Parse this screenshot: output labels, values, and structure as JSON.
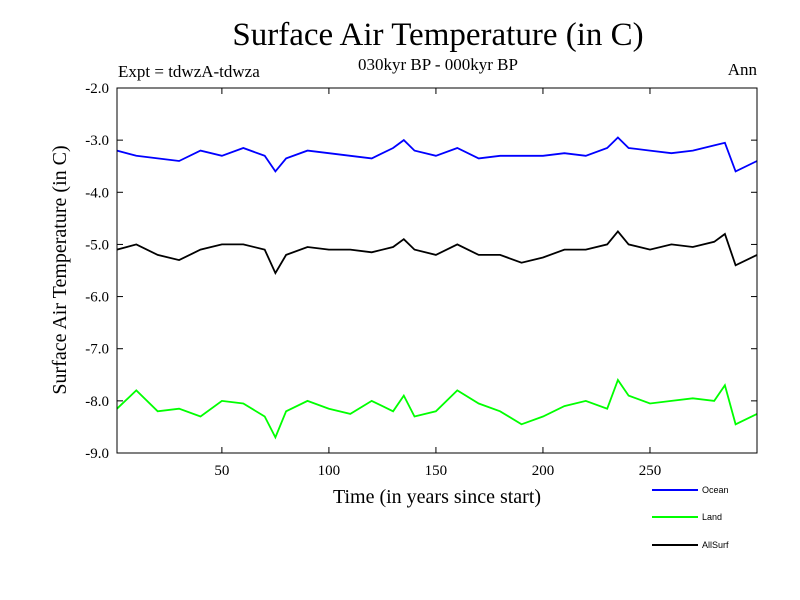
{
  "chart_data": {
    "type": "line",
    "title": "Surface Air Temperature (in C)",
    "subtitle": "030kyr BP - 000kyr BP",
    "experiment": "Expt = tdwzA-tdwza",
    "period": "Ann",
    "xlabel": "Time (in years since start)",
    "ylabel": "Surface Air Temperature (in C)",
    "xlim": [
      1,
      300
    ],
    "ylim": [
      -9.0,
      -2.0
    ],
    "xticks": [
      50,
      100,
      150,
      200,
      250
    ],
    "yticks": [
      -2.0,
      -3.0,
      -4.0,
      -5.0,
      -6.0,
      -7.0,
      -8.0,
      -9.0
    ],
    "ytick_labels": [
      "-2.0",
      "-3.0",
      "-4.0",
      "-5.0",
      "-6.0",
      "-7.0",
      "-8.0",
      "-9.0"
    ],
    "grid": false,
    "legend_position": "bottom-right, below plot",
    "x": [
      1,
      10,
      20,
      30,
      40,
      50,
      60,
      70,
      75,
      80,
      90,
      100,
      110,
      120,
      130,
      135,
      140,
      150,
      160,
      170,
      180,
      190,
      200,
      210,
      220,
      230,
      235,
      240,
      250,
      260,
      270,
      280,
      285,
      290,
      300
    ],
    "series": [
      {
        "name": "Ocean",
        "color": "#0000ff",
        "values": [
          -3.2,
          -3.3,
          -3.35,
          -3.4,
          -3.2,
          -3.3,
          -3.15,
          -3.3,
          -3.6,
          -3.35,
          -3.2,
          -3.25,
          -3.3,
          -3.35,
          -3.15,
          -3.0,
          -3.2,
          -3.3,
          -3.15,
          -3.35,
          -3.3,
          -3.3,
          -3.3,
          -3.25,
          -3.3,
          -3.15,
          -2.95,
          -3.15,
          -3.2,
          -3.25,
          -3.2,
          -3.1,
          -3.05,
          -3.6,
          -3.4
        ]
      },
      {
        "name": "Land",
        "color": "#00ff00",
        "values": [
          -8.15,
          -7.8,
          -8.2,
          -8.15,
          -8.3,
          -8.0,
          -8.05,
          -8.3,
          -8.7,
          -8.2,
          -8.0,
          -8.15,
          -8.25,
          -8.0,
          -8.2,
          -7.9,
          -8.3,
          -8.2,
          -7.8,
          -8.05,
          -8.2,
          -8.45,
          -8.3,
          -8.1,
          -8.0,
          -8.15,
          -7.6,
          -7.9,
          -8.05,
          -8.0,
          -7.95,
          -8.0,
          -7.7,
          -8.45,
          -8.25
        ]
      },
      {
        "name": "AllSurf",
        "color": "#000000",
        "values": [
          -5.1,
          -5.0,
          -5.2,
          -5.3,
          -5.1,
          -5.0,
          -5.0,
          -5.1,
          -5.55,
          -5.2,
          -5.05,
          -5.1,
          -5.1,
          -5.15,
          -5.05,
          -4.9,
          -5.1,
          -5.2,
          -5.0,
          -5.2,
          -5.2,
          -5.35,
          -5.25,
          -5.1,
          -5.1,
          -5.0,
          -4.75,
          -5.0,
          -5.1,
          -5.0,
          -5.05,
          -4.95,
          -4.8,
          -5.4,
          -5.2
        ]
      }
    ]
  }
}
